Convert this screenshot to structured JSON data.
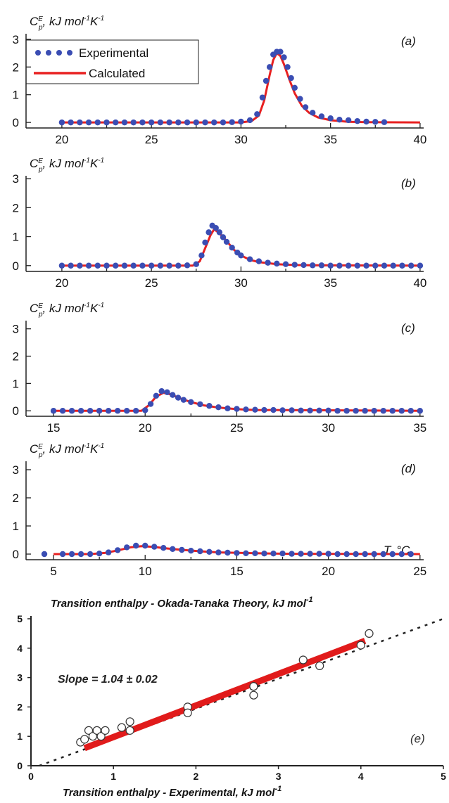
{
  "colors": {
    "experimental": "#3a4db3",
    "calculated": "#e82020",
    "fit_line": "#e11b1b",
    "axis": "#222222"
  },
  "legend": {
    "experimental": "Experimental",
    "calculated": "Calculated"
  },
  "y_axis_title": {
    "symbol": "C",
    "superscript": "E",
    "subscript": "p",
    "unit": ", kJ mol",
    "unit_sup": "-1",
    "unit2": "K",
    "unit2_sup": "-1"
  },
  "x_axis_title": "T, °C",
  "chart_data": [
    {
      "type": "line",
      "panel_label": "(a)",
      "ylim": [
        -0.2,
        3.2
      ],
      "xlim": [
        18,
        40.2
      ],
      "xticks": [
        20,
        25,
        30,
        35,
        40
      ],
      "yticks": [
        0,
        1,
        2,
        3
      ],
      "legend_position": "top-left",
      "series": [
        {
          "name": "Experimental",
          "style": "dots",
          "x": [
            20,
            20.5,
            21,
            21.5,
            22,
            22.5,
            23,
            23.5,
            24,
            24.5,
            25,
            25.5,
            26,
            26.5,
            27,
            27.5,
            28,
            28.5,
            29,
            29.5,
            30,
            30.5,
            30.9,
            31.2,
            31.4,
            31.6,
            31.8,
            32.0,
            32.2,
            32.4,
            32.6,
            32.8,
            33.0,
            33.3,
            33.6,
            34,
            34.5,
            35,
            35.5,
            36,
            36.5,
            37,
            37.5,
            38
          ],
          "y": [
            0,
            0,
            0,
            0,
            0,
            0,
            0,
            0,
            0,
            0,
            0,
            0,
            0,
            0,
            0,
            0,
            0,
            0,
            0,
            0.01,
            0.03,
            0.08,
            0.3,
            0.9,
            1.5,
            2.0,
            2.45,
            2.55,
            2.55,
            2.35,
            2.0,
            1.6,
            1.25,
            0.85,
            0.55,
            0.35,
            0.22,
            0.15,
            0.1,
            0.08,
            0.05,
            0.03,
            0.02,
            0.01
          ]
        },
        {
          "name": "Calculated",
          "style": "line",
          "x": [
            20,
            30,
            30.6,
            31.0,
            31.3,
            31.6,
            31.8,
            32.0,
            32.2,
            32.4,
            32.7,
            33.0,
            33.4,
            33.8,
            34.3,
            35,
            36,
            37,
            40
          ],
          "y": [
            0,
            0,
            0.05,
            0.25,
            0.8,
            1.7,
            2.25,
            2.5,
            2.4,
            2.1,
            1.55,
            1.05,
            0.6,
            0.35,
            0.18,
            0.08,
            0.02,
            0.01,
            0
          ]
        }
      ]
    },
    {
      "type": "line",
      "panel_label": "(b)",
      "ylim": [
        -0.2,
        3.1
      ],
      "xlim": [
        18,
        40.2
      ],
      "xticks": [
        20,
        25,
        30,
        35,
        40
      ],
      "yticks": [
        0,
        1,
        2,
        3
      ],
      "series": [
        {
          "name": "Experimental",
          "style": "dots",
          "x": [
            20,
            20.5,
            21,
            21.5,
            22,
            22.5,
            23,
            23.5,
            24,
            24.5,
            25,
            25.5,
            26,
            26.5,
            27,
            27.5,
            27.8,
            28.0,
            28.2,
            28.4,
            28.6,
            28.8,
            29.0,
            29.2,
            29.5,
            29.8,
            30,
            30.5,
            31,
            31.5,
            32,
            32.5,
            33,
            33.5,
            34,
            34.5,
            35,
            35.5,
            36,
            36.5,
            37,
            37.5,
            38,
            38.5,
            39,
            39.5,
            40
          ],
          "y": [
            0,
            0,
            0,
            0,
            0,
            0,
            0,
            0,
            0,
            0,
            0,
            0,
            0,
            0,
            0.01,
            0.05,
            0.35,
            0.8,
            1.15,
            1.38,
            1.3,
            1.15,
            0.98,
            0.82,
            0.62,
            0.45,
            0.35,
            0.22,
            0.15,
            0.1,
            0.07,
            0.05,
            0.03,
            0.02,
            0.01,
            0.01,
            0,
            0,
            0,
            0,
            0,
            0,
            0,
            0,
            0,
            0,
            0
          ]
        },
        {
          "name": "Calculated",
          "style": "line",
          "x": [
            20,
            27.3,
            27.7,
            28.0,
            28.3,
            28.5,
            28.8,
            29.2,
            29.6,
            30,
            30.5,
            31,
            32,
            33,
            34,
            40
          ],
          "y": [
            0,
            0,
            0.15,
            0.6,
            1.05,
            1.25,
            1.12,
            0.85,
            0.55,
            0.35,
            0.2,
            0.12,
            0.05,
            0.02,
            0.01,
            0
          ]
        }
      ]
    },
    {
      "type": "line",
      "panel_label": "(c)",
      "ylim": [
        -0.2,
        3.3
      ],
      "xlim": [
        13.5,
        35.2
      ],
      "xticks": [
        15,
        20,
        25,
        30,
        35
      ],
      "yticks": [
        0,
        1,
        2,
        3
      ],
      "series": [
        {
          "name": "Experimental",
          "style": "dots",
          "x": [
            15,
            15.5,
            16,
            16.5,
            17,
            17.5,
            18,
            18.5,
            19,
            19.5,
            20,
            20.3,
            20.6,
            20.9,
            21.2,
            21.5,
            21.8,
            22.1,
            22.5,
            23,
            23.5,
            24,
            24.5,
            25,
            25.5,
            26,
            26.5,
            27,
            27.5,
            28,
            28.5,
            29,
            29.5,
            30,
            30.5,
            31,
            31.5,
            32,
            32.5,
            33,
            33.5,
            34,
            34.5,
            35
          ],
          "y": [
            0,
            0,
            0,
            0,
            0,
            0,
            0,
            0,
            0,
            0,
            0.02,
            0.25,
            0.55,
            0.72,
            0.68,
            0.58,
            0.48,
            0.4,
            0.32,
            0.24,
            0.18,
            0.13,
            0.09,
            0.07,
            0.05,
            0.04,
            0.03,
            0.03,
            0.02,
            0.02,
            0.01,
            0.01,
            0.01,
            0.01,
            0,
            0,
            0,
            0,
            0,
            0,
            0,
            0,
            0,
            0
          ]
        },
        {
          "name": "Calculated",
          "style": "line",
          "x": [
            15,
            19.8,
            20.2,
            20.6,
            21.0,
            21.4,
            21.9,
            22.5,
            23.2,
            24,
            25,
            26,
            35
          ],
          "y": [
            0,
            0,
            0.2,
            0.52,
            0.66,
            0.6,
            0.46,
            0.32,
            0.2,
            0.12,
            0.06,
            0.03,
            0
          ]
        }
      ]
    },
    {
      "type": "line",
      "panel_label": "(d)",
      "ylim": [
        -0.2,
        3.3
      ],
      "xlim": [
        3.5,
        25.2
      ],
      "xticks": [
        5,
        10,
        15,
        20,
        25
      ],
      "yticks": [
        0,
        1,
        2,
        3
      ],
      "series": [
        {
          "name": "Experimental",
          "style": "dots",
          "x": [
            4.5,
            5.5,
            6,
            6.5,
            7,
            7.5,
            8,
            8.5,
            9,
            9.5,
            10,
            10.5,
            11,
            11.5,
            12,
            12.5,
            13,
            13.5,
            14,
            14.5,
            15,
            15.5,
            16,
            16.5,
            17,
            17.5,
            18,
            18.5,
            19,
            19.5,
            20,
            20.5,
            21,
            21.5,
            22,
            22.5,
            23,
            23.5,
            24,
            24.5
          ],
          "y": [
            0,
            0,
            0,
            0,
            0,
            0.02,
            0.06,
            0.14,
            0.24,
            0.3,
            0.3,
            0.26,
            0.22,
            0.18,
            0.15,
            0.12,
            0.1,
            0.08,
            0.06,
            0.05,
            0.04,
            0.03,
            0.03,
            0.02,
            0.02,
            0.02,
            0.01,
            0.01,
            0.01,
            0.01,
            0.01,
            0,
            0,
            0,
            0,
            0,
            0,
            0,
            0,
            0
          ]
        },
        {
          "name": "Calculated",
          "style": "line",
          "x": [
            5,
            7,
            7.8,
            8.5,
            9.2,
            9.8,
            10.4,
            11.2,
            12,
            13,
            14,
            16,
            18,
            25
          ],
          "y": [
            0,
            0,
            0.04,
            0.13,
            0.24,
            0.28,
            0.26,
            0.2,
            0.15,
            0.1,
            0.06,
            0.03,
            0.01,
            0
          ]
        }
      ]
    },
    {
      "type": "scatter",
      "panel_label": "(e)",
      "title": "Transition enthalpy - Okada-Tanaka Theory, kJ mol",
      "title_sup": "-1",
      "xlabel": "Transition enthalpy - Experimental, kJ mol",
      "xlabel_sup": "-1",
      "annotation": "Slope = 1.04 ± 0.02",
      "xlim": [
        0,
        5
      ],
      "ylim": [
        0,
        5
      ],
      "xticks": [
        0,
        1,
        2,
        3,
        4,
        5
      ],
      "yticks": [
        0,
        1,
        2,
        3,
        4,
        5
      ],
      "points": {
        "x": [
          0.6,
          0.65,
          0.7,
          0.75,
          0.8,
          0.85,
          0.9,
          1.1,
          1.2,
          1.2,
          1.9,
          1.9,
          2.7,
          2.7,
          3.3,
          3.5,
          4.0,
          4.1
        ],
        "y": [
          0.8,
          0.9,
          1.2,
          1.0,
          1.2,
          1.0,
          1.2,
          1.3,
          1.5,
          1.2,
          2.0,
          1.8,
          2.7,
          2.4,
          3.6,
          3.4,
          4.1,
          4.5
        ]
      },
      "fit": {
        "x": [
          0.65,
          4.05
        ],
        "y": [
          0.6,
          4.25
        ]
      },
      "dashed_line": {
        "x": [
          0.1,
          5
        ],
        "y": [
          0,
          5
        ]
      }
    }
  ]
}
